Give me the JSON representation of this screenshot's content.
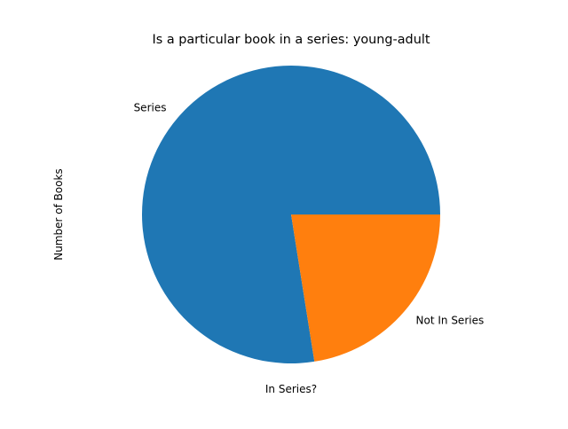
{
  "chart_data": {
    "type": "pie",
    "title": "Is a particular book in a series: young-adult",
    "xlabel": "In Series?",
    "ylabel": "Number of Books",
    "slices": [
      {
        "label": "Series",
        "value": 77.5,
        "color": "#1f77b4"
      },
      {
        "label": "Not In Series",
        "value": 22.5,
        "color": "#ff7f0e"
      }
    ],
    "start_angle_deg": 0,
    "direction": "counterclockwise",
    "legend": "none",
    "grid": false
  }
}
